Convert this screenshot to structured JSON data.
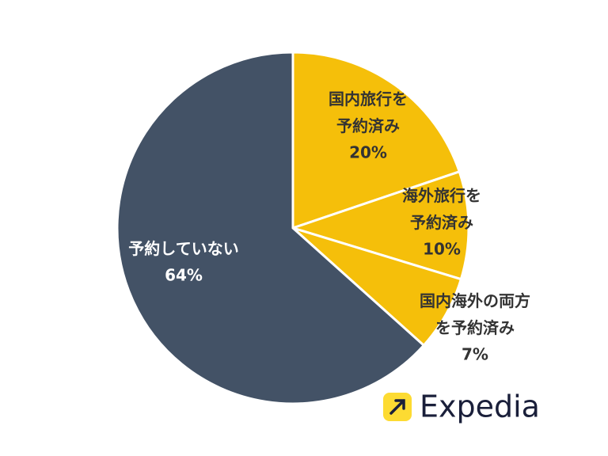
{
  "chart_data": {
    "type": "pie",
    "categories": [
      "国内旅行を\n予約済み",
      "海外旅行を\n予約済み",
      "国内海外の両方\nを予約済み",
      "予約していない"
    ],
    "values": [
      20,
      10,
      7,
      64
    ],
    "value_labels": [
      "20%",
      "10%",
      "7%",
      "64%"
    ],
    "colors": [
      "#f5bf0a",
      "#f5bf0a",
      "#f5bf0a",
      "#435266"
    ],
    "label_colors": [
      "#333333",
      "#333333",
      "#333333",
      "#ffffff"
    ]
  },
  "logo": "Expedia"
}
